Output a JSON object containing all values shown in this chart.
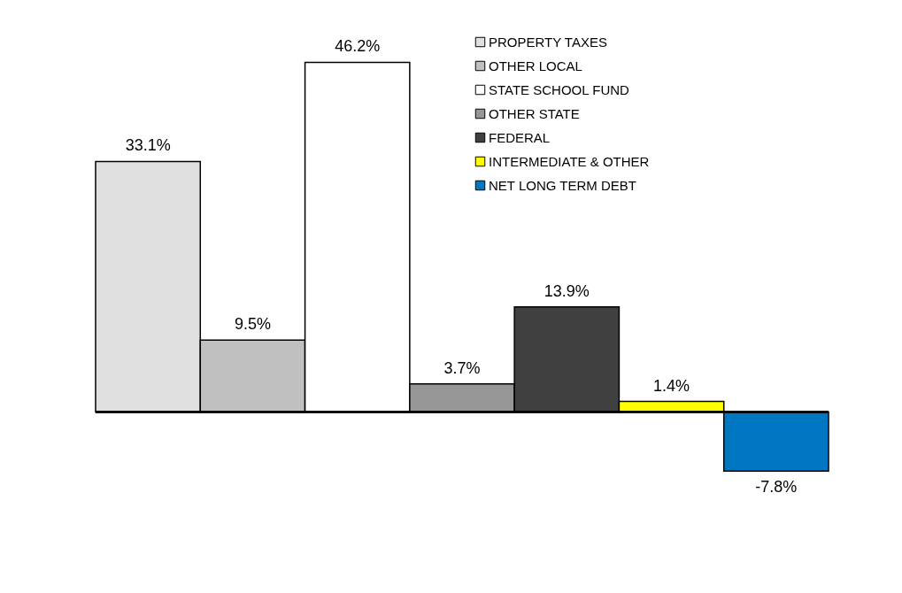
{
  "chart_data": {
    "type": "bar",
    "categories": [
      null
    ],
    "data_labels": true,
    "legend": "top right",
    "tick_labels": false,
    "series": [
      {
        "name": "PROPERTY TAXES",
        "color": "#e0e0e0",
        "values": [
          33.1
        ],
        "value_labels": [
          "33.1%"
        ]
      },
      {
        "name": "OTHER LOCAL",
        "color": "#c0c0c0",
        "values": [
          9.5
        ],
        "value_labels": [
          "9.5%"
        ]
      },
      {
        "name": "STATE SCHOOL FUND",
        "color": "#ffffff",
        "values": [
          46.2
        ],
        "value_labels": [
          "46.2%"
        ]
      },
      {
        "name": "OTHER STATE",
        "color": "#969696",
        "values": [
          3.7
        ],
        "value_labels": [
          "3.7%"
        ]
      },
      {
        "name": "FEDERAL",
        "color": "#404040",
        "values": [
          13.9
        ],
        "value_labels": [
          "13.9%"
        ]
      },
      {
        "name": "INTERMEDIATE & OTHER",
        "color": "#ffff00",
        "values": [
          1.4
        ],
        "value_labels": [
          "1.4%"
        ]
      },
      {
        "name": "NET LONG TERM DEBT",
        "color": "#0077c0",
        "values": [
          -7.8
        ],
        "value_labels": [
          "-7.8%"
        ]
      }
    ]
  }
}
